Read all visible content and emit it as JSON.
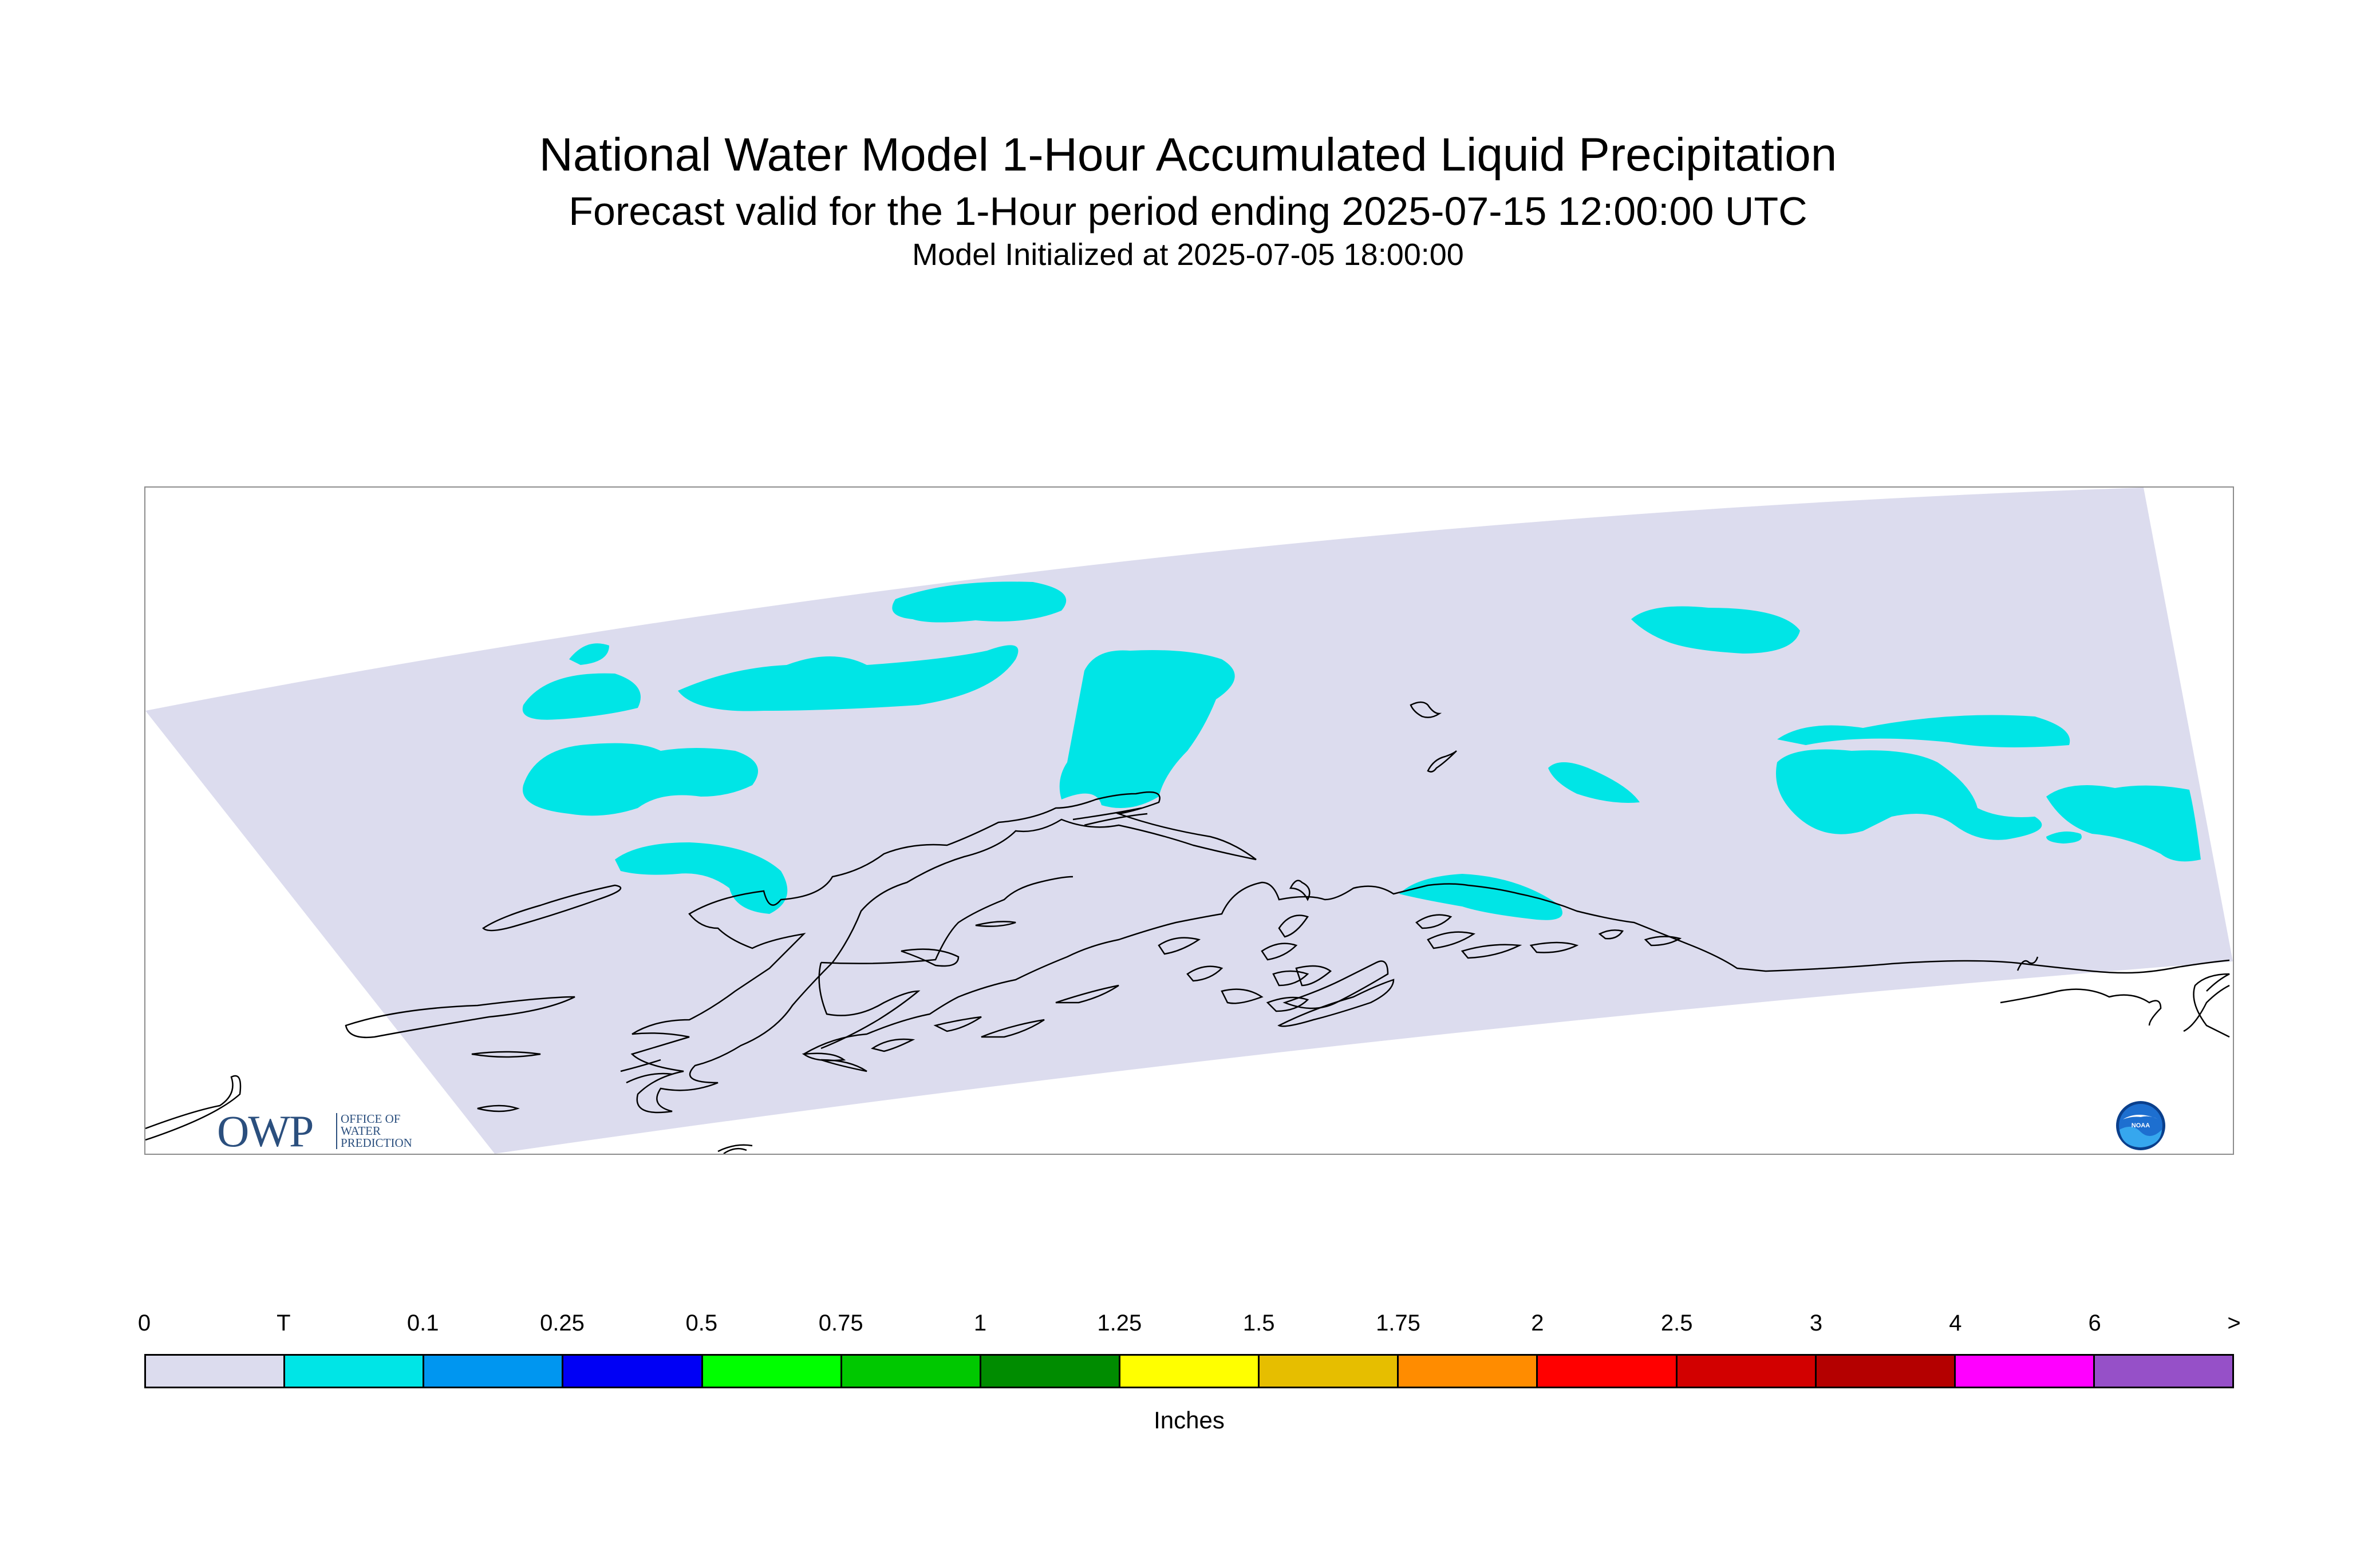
{
  "title": {
    "main": "National Water Model 1-Hour Accumulated Liquid Precipitation",
    "sub": "Forecast valid for the 1-Hour period ending 2025-07-15 12:00:00 UTC",
    "init": "Model Initialized at 2025-07-05 18:00:00"
  },
  "map": {
    "domain_fill_color": "#dcdcee",
    "precip_fill_color": "#00e5e6",
    "coastline_color": "#000000",
    "precip_category": "T"
  },
  "logos": {
    "owp_mark": "OWP",
    "owp_text": [
      "OFFICE OF",
      "WATER",
      "PREDICTION"
    ],
    "noaa_text": "NOAA"
  },
  "legend": {
    "labels": [
      "0",
      "T",
      "0.1",
      "0.25",
      "0.5",
      "0.75",
      "1",
      "1.25",
      "1.5",
      "1.75",
      "2",
      "2.5",
      "3",
      "4",
      "6",
      ">"
    ],
    "colors": [
      "#dcdcee",
      "#00e5e6",
      "#0096f0",
      "#0000f5",
      "#00ff00",
      "#00c800",
      "#008c00",
      "#ffff00",
      "#e6be00",
      "#ff8c00",
      "#ff0000",
      "#d20000",
      "#b40000",
      "#ff00ff",
      "#9650c8"
    ],
    "unit": "Inches"
  }
}
